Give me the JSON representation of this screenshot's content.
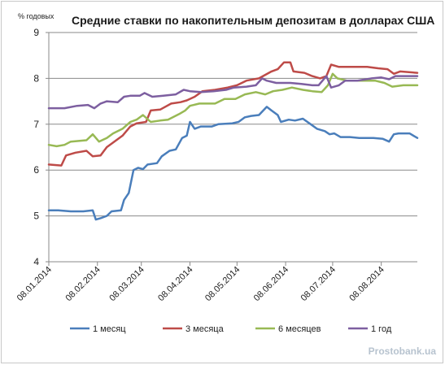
{
  "chart_data": {
    "type": "line",
    "title": "Средние ставки по накопительным депозитам в долларах США",
    "unit_label": "% годовых",
    "ylim": [
      4,
      9
    ],
    "yticks": [
      4,
      5,
      6,
      7,
      8,
      9
    ],
    "xlim": [
      "2014-01-08",
      "2014-08-31"
    ],
    "xticks": [
      "2014-01-08",
      "2014-02-08",
      "2014-03-08",
      "2014-04-08",
      "2014-05-08",
      "2014-06-08",
      "2014-07-08",
      "2014-08-08"
    ],
    "xtick_labels": [
      "08.01.2014",
      "08.02.2014",
      "08.03.2014",
      "08.04.2014",
      "08.05.2014",
      "08.06.2014",
      "08.07.2014",
      "08.08.2014"
    ],
    "grid": "horizontal",
    "legend_position": "bottom",
    "watermark": "Prostobank.ua",
    "series": [
      {
        "name": "1 месяц",
        "color": "#4a7ebb",
        "points": [
          [
            "2014-01-08",
            5.12
          ],
          [
            "2014-01-14",
            5.12
          ],
          [
            "2014-01-22",
            5.1
          ],
          [
            "2014-01-30",
            5.1
          ],
          [
            "2014-02-05",
            5.12
          ],
          [
            "2014-02-07",
            4.92
          ],
          [
            "2014-02-10",
            4.95
          ],
          [
            "2014-02-14",
            5.0
          ],
          [
            "2014-02-17",
            5.1
          ],
          [
            "2014-02-23",
            5.12
          ],
          [
            "2014-02-25",
            5.35
          ],
          [
            "2014-02-28",
            5.5
          ],
          [
            "2014-03-03",
            6.0
          ],
          [
            "2014-03-06",
            6.05
          ],
          [
            "2014-03-09",
            6.02
          ],
          [
            "2014-03-12",
            6.12
          ],
          [
            "2014-03-18",
            6.15
          ],
          [
            "2014-03-21",
            6.3
          ],
          [
            "2014-03-26",
            6.42
          ],
          [
            "2014-03-30",
            6.45
          ],
          [
            "2014-04-03",
            6.7
          ],
          [
            "2014-04-06",
            6.75
          ],
          [
            "2014-04-08",
            7.05
          ],
          [
            "2014-04-11",
            6.9
          ],
          [
            "2014-04-15",
            6.95
          ],
          [
            "2014-04-22",
            6.95
          ],
          [
            "2014-04-26",
            7.0
          ],
          [
            "2014-05-05",
            7.02
          ],
          [
            "2014-05-09",
            7.05
          ],
          [
            "2014-05-13",
            7.15
          ],
          [
            "2014-05-17",
            7.18
          ],
          [
            "2014-05-22",
            7.2
          ],
          [
            "2014-05-27",
            7.38
          ],
          [
            "2014-05-30",
            7.3
          ],
          [
            "2014-06-03",
            7.2
          ],
          [
            "2014-06-05",
            7.05
          ],
          [
            "2014-06-10",
            7.1
          ],
          [
            "2014-06-14",
            7.08
          ],
          [
            "2014-06-19",
            7.12
          ],
          [
            "2014-06-24",
            7.0
          ],
          [
            "2014-06-28",
            6.9
          ],
          [
            "2014-07-03",
            6.85
          ],
          [
            "2014-07-06",
            6.78
          ],
          [
            "2014-07-09",
            6.8
          ],
          [
            "2014-07-13",
            6.72
          ],
          [
            "2014-07-19",
            6.72
          ],
          [
            "2014-07-25",
            6.7
          ],
          [
            "2014-08-03",
            6.7
          ],
          [
            "2014-08-09",
            6.68
          ],
          [
            "2014-08-13",
            6.62
          ],
          [
            "2014-08-16",
            6.78
          ],
          [
            "2014-08-19",
            6.8
          ],
          [
            "2014-08-26",
            6.8
          ],
          [
            "2014-08-31",
            6.7
          ]
        ]
      },
      {
        "name": "3 месяца",
        "color": "#be4b48",
        "points": [
          [
            "2014-01-08",
            6.12
          ],
          [
            "2014-01-16",
            6.1
          ],
          [
            "2014-01-19",
            6.32
          ],
          [
            "2014-01-25",
            6.38
          ],
          [
            "2014-02-01",
            6.42
          ],
          [
            "2014-02-05",
            6.3
          ],
          [
            "2014-02-10",
            6.32
          ],
          [
            "2014-02-14",
            6.5
          ],
          [
            "2014-02-18",
            6.6
          ],
          [
            "2014-02-24",
            6.75
          ],
          [
            "2014-03-01",
            6.95
          ],
          [
            "2014-03-05",
            7.02
          ],
          [
            "2014-03-11",
            7.05
          ],
          [
            "2014-03-14",
            7.3
          ],
          [
            "2014-03-20",
            7.32
          ],
          [
            "2014-03-27",
            7.45
          ],
          [
            "2014-04-02",
            7.48
          ],
          [
            "2014-04-06",
            7.52
          ],
          [
            "2014-04-11",
            7.6
          ],
          [
            "2014-04-16",
            7.72
          ],
          [
            "2014-04-24",
            7.75
          ],
          [
            "2014-05-02",
            7.8
          ],
          [
            "2014-05-08",
            7.85
          ],
          [
            "2014-05-14",
            7.95
          ],
          [
            "2014-05-22",
            8.0
          ],
          [
            "2014-05-30",
            8.15
          ],
          [
            "2014-06-03",
            8.2
          ],
          [
            "2014-06-07",
            8.35
          ],
          [
            "2014-06-11",
            8.35
          ],
          [
            "2014-06-13",
            8.15
          ],
          [
            "2014-06-20",
            8.12
          ],
          [
            "2014-06-25",
            8.05
          ],
          [
            "2014-06-30",
            8.0
          ],
          [
            "2014-07-04",
            8.05
          ],
          [
            "2014-07-07",
            8.3
          ],
          [
            "2014-07-12",
            8.25
          ],
          [
            "2014-07-20",
            8.25
          ],
          [
            "2014-07-30",
            8.25
          ],
          [
            "2014-08-06",
            8.22
          ],
          [
            "2014-08-12",
            8.2
          ],
          [
            "2014-08-16",
            8.1
          ],
          [
            "2014-08-20",
            8.15
          ],
          [
            "2014-08-31",
            8.12
          ]
        ]
      },
      {
        "name": "6 месяцев",
        "color": "#98b954",
        "points": [
          [
            "2014-01-08",
            6.55
          ],
          [
            "2014-01-13",
            6.52
          ],
          [
            "2014-01-18",
            6.55
          ],
          [
            "2014-01-22",
            6.62
          ],
          [
            "2014-02-01",
            6.65
          ],
          [
            "2014-02-05",
            6.78
          ],
          [
            "2014-02-09",
            6.62
          ],
          [
            "2014-02-14",
            6.7
          ],
          [
            "2014-02-18",
            6.8
          ],
          [
            "2014-02-24",
            6.9
          ],
          [
            "2014-03-01",
            7.05
          ],
          [
            "2014-03-05",
            7.1
          ],
          [
            "2014-03-09",
            7.2
          ],
          [
            "2014-03-14",
            7.05
          ],
          [
            "2014-03-20",
            7.08
          ],
          [
            "2014-03-25",
            7.1
          ],
          [
            "2014-04-01",
            7.22
          ],
          [
            "2014-04-05",
            7.3
          ],
          [
            "2014-04-08",
            7.4
          ],
          [
            "2014-04-14",
            7.45
          ],
          [
            "2014-04-24",
            7.45
          ],
          [
            "2014-04-30",
            7.55
          ],
          [
            "2014-05-07",
            7.55
          ],
          [
            "2014-05-13",
            7.65
          ],
          [
            "2014-05-20",
            7.7
          ],
          [
            "2014-05-26",
            7.65
          ],
          [
            "2014-05-31",
            7.72
          ],
          [
            "2014-06-06",
            7.75
          ],
          [
            "2014-06-12",
            7.8
          ],
          [
            "2014-06-19",
            7.75
          ],
          [
            "2014-06-25",
            7.72
          ],
          [
            "2014-07-01",
            7.7
          ],
          [
            "2014-07-05",
            7.85
          ],
          [
            "2014-07-08",
            8.1
          ],
          [
            "2014-07-11",
            8.0
          ],
          [
            "2014-07-17",
            7.95
          ],
          [
            "2014-07-26",
            7.95
          ],
          [
            "2014-08-04",
            7.95
          ],
          [
            "2014-08-10",
            7.9
          ],
          [
            "2014-08-15",
            7.82
          ],
          [
            "2014-08-22",
            7.85
          ],
          [
            "2014-08-31",
            7.85
          ]
        ]
      },
      {
        "name": "1 год",
        "color": "#7d5fa0",
        "points": [
          [
            "2014-01-08",
            7.35
          ],
          [
            "2014-01-18",
            7.35
          ],
          [
            "2014-01-26",
            7.4
          ],
          [
            "2014-02-02",
            7.42
          ],
          [
            "2014-02-06",
            7.35
          ],
          [
            "2014-02-10",
            7.45
          ],
          [
            "2014-02-14",
            7.5
          ],
          [
            "2014-02-21",
            7.48
          ],
          [
            "2014-02-25",
            7.6
          ],
          [
            "2014-03-01",
            7.62
          ],
          [
            "2014-03-07",
            7.62
          ],
          [
            "2014-03-10",
            7.68
          ],
          [
            "2014-03-15",
            7.6
          ],
          [
            "2014-03-22",
            7.62
          ],
          [
            "2014-03-30",
            7.65
          ],
          [
            "2014-04-04",
            7.75
          ],
          [
            "2014-04-08",
            7.72
          ],
          [
            "2014-04-15",
            7.7
          ],
          [
            "2014-04-23",
            7.72
          ],
          [
            "2014-05-01",
            7.75
          ],
          [
            "2014-05-06",
            7.8
          ],
          [
            "2014-05-14",
            7.82
          ],
          [
            "2014-05-20",
            7.85
          ],
          [
            "2014-05-24",
            8.0
          ],
          [
            "2014-05-27",
            7.95
          ],
          [
            "2014-06-02",
            7.9
          ],
          [
            "2014-06-11",
            7.9
          ],
          [
            "2014-06-18",
            7.88
          ],
          [
            "2014-06-25",
            7.85
          ],
          [
            "2014-06-29",
            7.85
          ],
          [
            "2014-07-04",
            8.05
          ],
          [
            "2014-07-07",
            7.8
          ],
          [
            "2014-07-12",
            7.85
          ],
          [
            "2014-07-16",
            7.95
          ],
          [
            "2014-07-24",
            7.95
          ],
          [
            "2014-08-02",
            8.0
          ],
          [
            "2014-08-08",
            8.02
          ],
          [
            "2014-08-13",
            7.98
          ],
          [
            "2014-08-17",
            8.05
          ],
          [
            "2014-08-31",
            8.05
          ]
        ]
      }
    ]
  }
}
